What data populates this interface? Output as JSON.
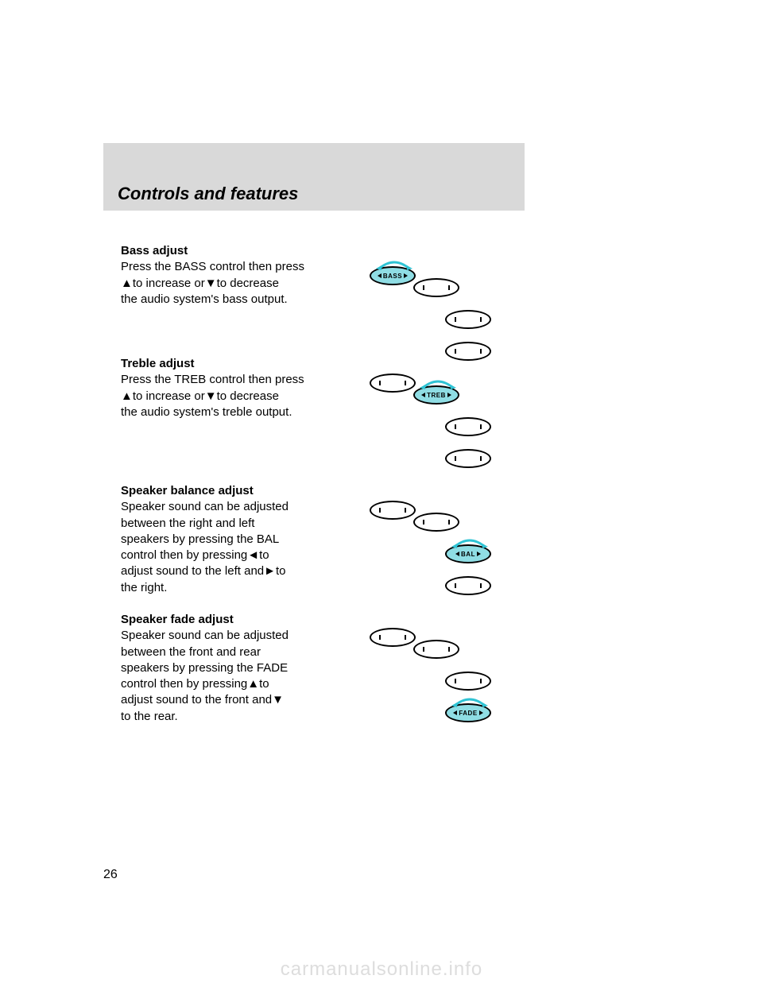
{
  "header": {
    "title": "Controls and features"
  },
  "blocks": {
    "bass": {
      "bold": "Bass adjust",
      "html": "Press the BASS control then press<br>▲to increase or▼to decrease<br>the audio system's bass output."
    },
    "treble": {
      "bold": "Treble adjust",
      "html": "Press the TREB control then press<br>▲to increase or▼to decrease<br>the audio system's treble output."
    },
    "balance": {
      "bold": "Speaker balance adjust",
      "html": "Speaker sound can be adjusted<br>between the right and left<br>speakers by pressing the BAL<br>control then by pressing◄to<br>adjust sound to the left and►to<br>the right."
    },
    "fade": {
      "bold": "Speaker fade adjust",
      "html": "Speaker sound can be adjusted<br>between the front and rear<br>speakers by pressing the FADE<br>control then by pressing▲to<br>adjust sound to the front and▼<br>to the rear."
    }
  },
  "button_labels": {
    "bass": "BASS",
    "treb": "TREB",
    "bal": "BAL",
    "fade": "FADE"
  },
  "page_number": "26",
  "watermark": "carmanualsonline.info",
  "colors": {
    "header_bg": "#d9d9d9",
    "highlight_fill": "#8fdde4",
    "arrow_color": "#2fc3d4",
    "watermark_color": "#dddddd"
  }
}
